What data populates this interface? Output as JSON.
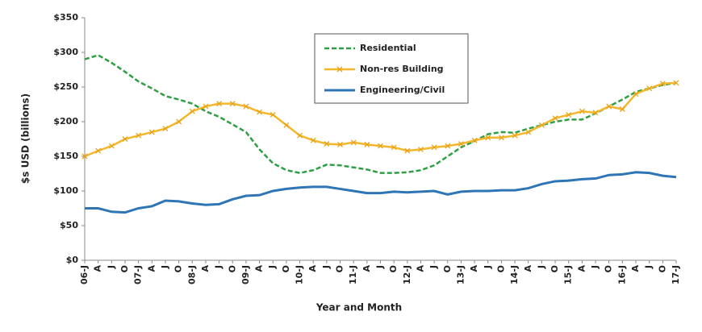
{
  "chart_data": {
    "type": "line",
    "x_label": "Year and Month",
    "y_label": "$s USD (billions)",
    "categories": [
      "06-J",
      "A",
      "J",
      "O",
      "07-J",
      "A",
      "J",
      "O",
      "08-J",
      "A",
      "J",
      "O",
      "09-J",
      "A",
      "J",
      "O",
      "10-J",
      "A",
      "J",
      "O",
      "11-J",
      "A",
      "J",
      "O",
      "12-J",
      "A",
      "J",
      "O",
      "13-J",
      "A",
      "J",
      "O",
      "14-J",
      "A",
      "J",
      "O",
      "15-J",
      "A",
      "J",
      "O",
      "16-J",
      "A",
      "J",
      "O",
      "17-J"
    ],
    "series": [
      {
        "name": "Residential",
        "color": "#2ea043",
        "style": "dashed",
        "values": [
          290,
          296,
          285,
          272,
          258,
          248,
          237,
          232,
          226,
          215,
          207,
          196,
          185,
          160,
          140,
          130,
          126,
          130,
          138,
          137,
          134,
          131,
          126,
          126,
          127,
          130,
          137,
          150,
          163,
          172,
          182,
          185,
          184,
          190,
          195,
          200,
          203,
          203,
          212,
          222,
          232,
          243,
          248,
          253,
          256
        ]
      },
      {
        "name": "Non-res Building",
        "color": "#f6b62b",
        "style": "solid-markers",
        "values": [
          150,
          158,
          165,
          175,
          180,
          185,
          190,
          200,
          215,
          222,
          226,
          226,
          222,
          214,
          210,
          195,
          180,
          173,
          168,
          167,
          170,
          167,
          165,
          163,
          158,
          160,
          163,
          165,
          168,
          173,
          177,
          177,
          180,
          185,
          195,
          205,
          210,
          215,
          213,
          222,
          218,
          240,
          248,
          255,
          256
        ]
      },
      {
        "name": "Engineering/Civil",
        "color": "#2e75b6",
        "style": "solid",
        "values": [
          75,
          75,
          70,
          69,
          75,
          78,
          86,
          85,
          82,
          80,
          81,
          88,
          93,
          94,
          100,
          103,
          105,
          106,
          106,
          103,
          100,
          97,
          97,
          99,
          98,
          99,
          100,
          95,
          99,
          100,
          100,
          101,
          101,
          104,
          110,
          114,
          115,
          117,
          118,
          123,
          124,
          127,
          126,
          122,
          120
        ]
      }
    ],
    "ylim": [
      0,
      350
    ],
    "yticks": [
      {
        "value": 0,
        "label": "$0"
      },
      {
        "value": 50,
        "label": "$50"
      },
      {
        "value": 100,
        "label": "$100"
      },
      {
        "value": 150,
        "label": "$150"
      },
      {
        "value": 200,
        "label": "$200"
      },
      {
        "value": 250,
        "label": "$250"
      },
      {
        "value": 300,
        "label": "$300"
      },
      {
        "value": 350,
        "label": "$350"
      }
    ],
    "grid": false,
    "legend": "top-center"
  }
}
